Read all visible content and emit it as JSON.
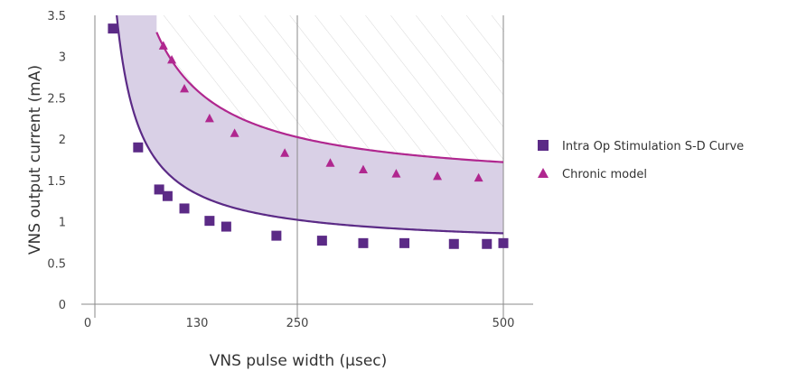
{
  "chart_data": {
    "type": "scatter",
    "xlabel": "VNS pulse width (μsec)",
    "ylabel": "VNS output current (mA)",
    "x_ticks": [
      "0",
      "130",
      "250",
      "500"
    ],
    "y_ticks": [
      "0",
      "0.5",
      "1",
      "1.5",
      "2",
      "2.5",
      "3",
      "3.5"
    ],
    "ylim": [
      0,
      3.5
    ],
    "grid": "vertical lines at 250 and 500",
    "legend_position": "right",
    "series": [
      {
        "name": "Intra Op Stimulation S-D Curve",
        "marker": "square",
        "color": "#5b2a86",
        "points": [
          [
            30,
            3.34
          ],
          [
            60,
            1.9
          ],
          [
            85,
            1.39
          ],
          [
            95,
            1.31
          ],
          [
            115,
            1.16
          ],
          [
            145,
            1.01
          ],
          [
            165,
            0.94
          ],
          [
            225,
            0.83
          ],
          [
            280,
            0.77
          ],
          [
            330,
            0.74
          ],
          [
            380,
            0.74
          ],
          [
            440,
            0.73
          ],
          [
            480,
            0.73
          ],
          [
            500,
            0.74
          ]
        ]
      },
      {
        "name": "Chronic model",
        "marker": "triangle",
        "color": "#b0278f",
        "points": [
          [
            90,
            3.13
          ],
          [
            100,
            2.96
          ],
          [
            115,
            2.61
          ],
          [
            145,
            2.25
          ],
          [
            175,
            2.07
          ],
          [
            235,
            1.83
          ],
          [
            290,
            1.71
          ],
          [
            330,
            1.63
          ],
          [
            370,
            1.58
          ],
          [
            420,
            1.55
          ],
          [
            470,
            1.53
          ]
        ]
      }
    ],
    "shaded_region_color": "#d9d0e6",
    "hatched_region": "above chronic model curve"
  }
}
